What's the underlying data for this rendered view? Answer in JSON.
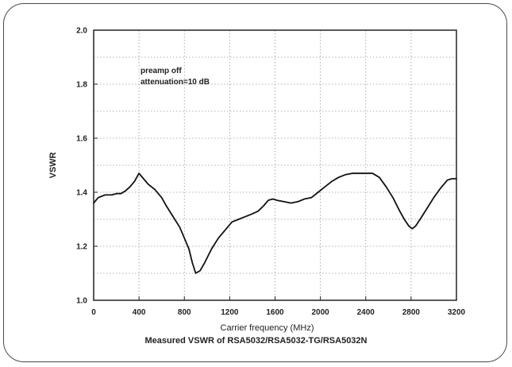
{
  "caption": "Measured VSWR of RSA5032/RSA5032-TG/RSA5032N",
  "chart_data": {
    "type": "line",
    "title": "",
    "xlabel": "Carrier frequency (MHz)",
    "ylabel": "VSWR",
    "xlim": [
      0,
      3200
    ],
    "ylim": [
      1.0,
      2.0
    ],
    "x_ticks": [
      0,
      400,
      800,
      1200,
      1600,
      2000,
      2400,
      2800,
      3200
    ],
    "y_ticks": [
      1.0,
      1.2,
      1.4,
      1.6,
      1.8,
      2.0
    ],
    "x_tick_labels": [
      "0",
      "400",
      "800",
      "1200",
      "1600",
      "2000",
      "2400",
      "2800",
      "3200"
    ],
    "y_tick_labels": [
      "1.0",
      "1.2",
      "1.4",
      "1.6",
      "1.8",
      "2.0"
    ],
    "grid": true,
    "annotations": [
      "preamp off",
      "attenuation=10 dB"
    ],
    "line_color": "#111111",
    "series": [
      {
        "x": [
          0,
          40,
          100,
          160,
          200,
          240,
          280,
          320,
          360,
          400,
          440,
          480,
          540,
          600,
          640,
          700,
          760,
          800,
          840,
          870,
          900,
          940,
          980,
          1040,
          1100,
          1160,
          1220,
          1280,
          1340,
          1400,
          1450,
          1500,
          1540,
          1580,
          1620,
          1680,
          1740,
          1800,
          1860,
          1920,
          1980,
          2040,
          2100,
          2160,
          2220,
          2280,
          2340,
          2400,
          2460,
          2520,
          2580,
          2640,
          2700,
          2740,
          2780,
          2810,
          2840,
          2880,
          2940,
          3000,
          3060,
          3120,
          3160,
          3200
        ],
        "y": [
          1.36,
          1.38,
          1.39,
          1.39,
          1.395,
          1.395,
          1.405,
          1.42,
          1.44,
          1.47,
          1.45,
          1.43,
          1.41,
          1.38,
          1.35,
          1.31,
          1.27,
          1.23,
          1.19,
          1.14,
          1.1,
          1.11,
          1.14,
          1.19,
          1.23,
          1.26,
          1.29,
          1.3,
          1.31,
          1.32,
          1.33,
          1.35,
          1.37,
          1.375,
          1.37,
          1.365,
          1.36,
          1.365,
          1.375,
          1.38,
          1.4,
          1.42,
          1.44,
          1.455,
          1.465,
          1.47,
          1.47,
          1.47,
          1.47,
          1.455,
          1.42,
          1.38,
          1.33,
          1.3,
          1.275,
          1.265,
          1.275,
          1.3,
          1.34,
          1.38,
          1.415,
          1.445,
          1.45,
          1.45
        ]
      }
    ]
  }
}
